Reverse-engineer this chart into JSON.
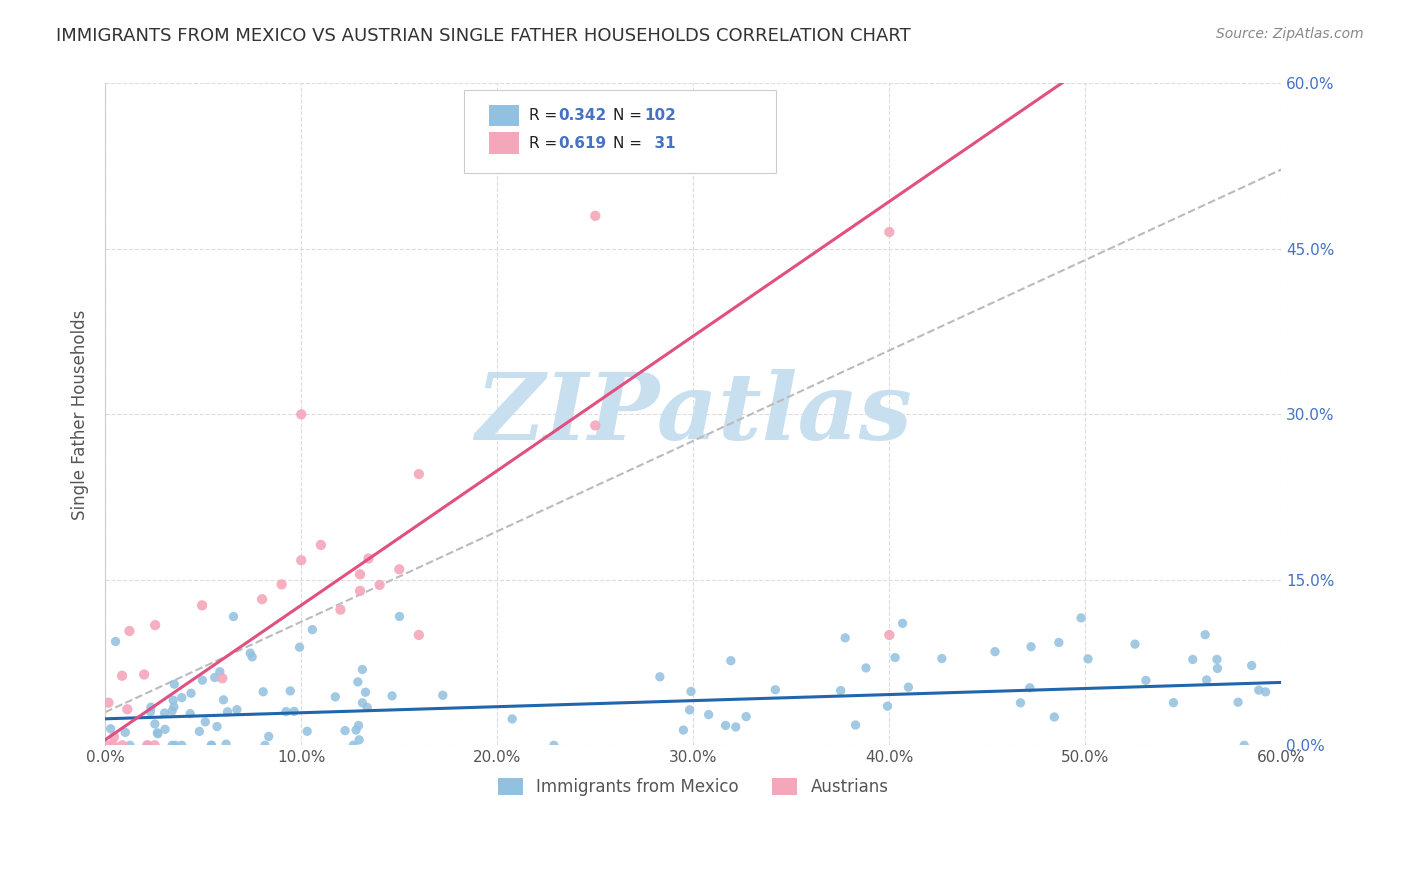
{
  "title": "IMMIGRANTS FROM MEXICO VS AUSTRIAN SINGLE FATHER HOUSEHOLDS CORRELATION CHART",
  "source": "Source: ZipAtlas.com",
  "ylabel": "Single Father Households",
  "xlim": [
    0.0,
    0.6
  ],
  "ylim": [
    0.0,
    0.6
  ],
  "xticks": [
    0.0,
    0.1,
    0.2,
    0.3,
    0.4,
    0.5,
    0.6
  ],
  "xtick_labels": [
    "0.0%",
    "10.0%",
    "20.0%",
    "30.0%",
    "40.0%",
    "50.0%",
    "60.0%"
  ],
  "yticks_left": [
    0.0,
    0.15,
    0.3,
    0.45,
    0.6
  ],
  "yticks_right_labels": [
    "0.0%",
    "15.0%",
    "30.0%",
    "45.0%",
    "60.0%"
  ],
  "yticks_right_vals": [
    0.0,
    0.15,
    0.3,
    0.45,
    0.6
  ],
  "blue_R": 0.342,
  "blue_N": 102,
  "pink_R": 0.619,
  "pink_N": 31,
  "blue_color": "#92c0e0",
  "pink_color": "#f4a7bb",
  "blue_line_color": "#2166ac",
  "pink_line_color": "#e05080",
  "ref_line_color": "#bbbbbb",
  "grid_color": "#dddddd",
  "background_color": "#ffffff",
  "watermark_color": "#c8dff0",
  "watermark_text": "ZIPatlas",
  "legend_label_blue": "Immigrants from Mexico",
  "legend_label_pink": "Austrians",
  "blue_slope": 0.055,
  "blue_intercept": 0.024,
  "pink_slope": 1.22,
  "pink_intercept": 0.005,
  "ref_slope": 0.82,
  "ref_intercept": 0.03
}
